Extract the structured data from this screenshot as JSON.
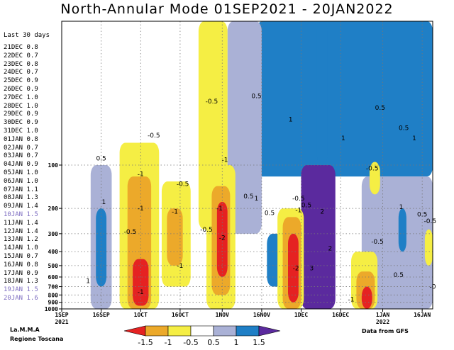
{
  "header": {
    "title": "North-Annular Mode 01SEP2021 - 20JAN2022"
  },
  "side": {
    "title": "Last 30 days",
    "entries": [
      {
        "date": "21DEC",
        "value": "0.8"
      },
      {
        "date": "22DEC",
        "value": "0.7"
      },
      {
        "date": "23DEC",
        "value": "0.8"
      },
      {
        "date": "24DEC",
        "value": "0.7"
      },
      {
        "date": "25DEC",
        "value": "0.9"
      },
      {
        "date": "26DEC",
        "value": "0.9"
      },
      {
        "date": "27DEC",
        "value": "1.0"
      },
      {
        "date": "28DEC",
        "value": "1.0"
      },
      {
        "date": "29DEC",
        "value": "0.9"
      },
      {
        "date": "30DEC",
        "value": "0.9"
      },
      {
        "date": "31DEC",
        "value": "1.0"
      },
      {
        "date": "01JAN",
        "value": "0.8"
      },
      {
        "date": "02JAN",
        "value": "0.7"
      },
      {
        "date": "03JAN",
        "value": "0.7"
      },
      {
        "date": "04JAN",
        "value": "0.9"
      },
      {
        "date": "05JAN",
        "value": "1.0"
      },
      {
        "date": "06JAN",
        "value": "1.0"
      },
      {
        "date": "07JAN",
        "value": "1.1"
      },
      {
        "date": "08JAN",
        "value": "1.3"
      },
      {
        "date": "09JAN",
        "value": "1.4"
      },
      {
        "date": "10JAN",
        "value": "1.5",
        "highlight": true
      },
      {
        "date": "11JAN",
        "value": "1.4"
      },
      {
        "date": "12JAN",
        "value": "1.4"
      },
      {
        "date": "13JAN",
        "value": "1.2"
      },
      {
        "date": "14JAN",
        "value": "1.0"
      },
      {
        "date": "15JAN",
        "value": "0.7"
      },
      {
        "date": "16JAN",
        "value": "0.8"
      },
      {
        "date": "17JAN",
        "value": "0.9"
      },
      {
        "date": "18JAN",
        "value": "1.3"
      },
      {
        "date": "19JAN",
        "value": "1.5",
        "highlight": true
      },
      {
        "date": "20JAN",
        "value": "1.6",
        "highlight": true
      }
    ]
  },
  "footer": {
    "org_line1": "La.M.M.A",
    "org_line2": "Regione Toscana",
    "source": "Data from GFS"
  },
  "colors": {
    "purple": "#5b2a9e",
    "blue": "#1f7fc6",
    "lavender": "#aab1d6",
    "white": "#ffffff",
    "yellow": "#f5ee44",
    "orange": "#eca92a",
    "red": "#e52222"
  },
  "chart_data": {
    "type": "heatmap",
    "title": "North-Annular Mode 01SEP2021 - 20JAN2022",
    "x_ticks": [
      {
        "date": "2021-09-01",
        "label": "1SEP",
        "sublabel": "2021"
      },
      {
        "date": "2021-09-16",
        "label": "16SEP"
      },
      {
        "date": "2021-10-01",
        "label": "1OCT"
      },
      {
        "date": "2021-10-16",
        "label": "16OCT"
      },
      {
        "date": "2021-11-01",
        "label": "1NOV"
      },
      {
        "date": "2021-11-16",
        "label": "16NOV"
      },
      {
        "date": "2021-12-01",
        "label": "1DEC"
      },
      {
        "date": "2021-12-16",
        "label": "16DEC"
      },
      {
        "date": "2022-01-01",
        "label": "1JAN",
        "sublabel": "2022"
      },
      {
        "date": "2022-01-16",
        "label": "16JAN"
      }
    ],
    "xlim": [
      "2021-09-01",
      "2022-01-20"
    ],
    "ylabel": "",
    "y_scale": "log",
    "y_inverted": true,
    "ylim": [
      1000,
      10
    ],
    "y_ticks": [
      1000,
      900,
      800,
      700,
      600,
      500,
      400,
      300,
      200,
      100
    ],
    "legend": {
      "placement": "bottom",
      "levels": [
        "-1.5",
        "-1",
        "-0.5",
        "0.5",
        "1",
        "1.5"
      ],
      "bins": [
        {
          "range": [
            -99,
            -1.5
          ],
          "color": "#e52222"
        },
        {
          "range": [
            -1.5,
            -1
          ],
          "color": "#eca92a"
        },
        {
          "range": [
            -1,
            -0.5
          ],
          "color": "#f5ee44"
        },
        {
          "range": [
            -0.5,
            0.5
          ],
          "color": "#ffffff"
        },
        {
          "range": [
            0.5,
            1
          ],
          "color": "#aab1d6"
        },
        {
          "range": [
            1,
            1.5
          ],
          "color": "#1f7fc6"
        },
        {
          "range": [
            1.5,
            99
          ],
          "color": "#5b2a9e"
        }
      ]
    },
    "regions": [
      {
        "value": 1.0,
        "date_range": [
          "2021-11-14",
          "2022-01-20"
        ],
        "p_range": [
          10,
          120
        ]
      },
      {
        "value": 0.7,
        "date_range": [
          "2021-11-03",
          "2021-11-16"
        ],
        "p_range": [
          10,
          300
        ]
      },
      {
        "value": 0.7,
        "date_range": [
          "2021-12-24",
          "2022-01-20"
        ],
        "p_range": [
          120,
          1000
        ]
      },
      {
        "value": 1.7,
        "date_range": [
          "2021-12-01",
          "2021-12-14"
        ],
        "p_range": [
          100,
          1000
        ]
      },
      {
        "value": 1.2,
        "date_range": [
          "2021-12-07",
          "2021-12-11"
        ],
        "p_range": [
          10,
          100
        ]
      },
      {
        "value": 1.2,
        "date_range": [
          "2021-11-18",
          "2021-11-24"
        ],
        "p_range": [
          300,
          700
        ]
      },
      {
        "value": 1.2,
        "date_range": [
          "2022-01-07",
          "2022-01-10"
        ],
        "p_range": [
          200,
          400
        ]
      },
      {
        "value": 0.7,
        "date_range": [
          "2021-09-12",
          "2021-09-20"
        ],
        "p_range": [
          100,
          1000
        ]
      },
      {
        "value": 1.2,
        "date_range": [
          "2021-09-14",
          "2021-09-18"
        ],
        "p_range": [
          200,
          700
        ]
      },
      {
        "value": -0.7,
        "date_range": [
          "2021-10-23",
          "2021-11-03"
        ],
        "p_range": [
          10,
          280
        ]
      },
      {
        "value": -0.7,
        "date_range": [
          "2021-09-23",
          "2021-10-08"
        ],
        "p_range": [
          70,
          1000
        ]
      },
      {
        "value": -1.2,
        "date_range": [
          "2021-09-26",
          "2021-10-05"
        ],
        "p_range": [
          120,
          1000
        ]
      },
      {
        "value": -1.8,
        "date_range": [
          "2021-09-28",
          "2021-10-04"
        ],
        "p_range": [
          450,
          950
        ]
      },
      {
        "value": -0.7,
        "date_range": [
          "2021-10-09",
          "2021-10-20"
        ],
        "p_range": [
          130,
          700
        ]
      },
      {
        "value": -1.2,
        "date_range": [
          "2021-10-11",
          "2021-10-17"
        ],
        "p_range": [
          200,
          500
        ]
      },
      {
        "value": -0.7,
        "date_range": [
          "2021-10-26",
          "2021-11-06"
        ],
        "p_range": [
          100,
          1000
        ]
      },
      {
        "value": -1.2,
        "date_range": [
          "2021-10-28",
          "2021-11-04"
        ],
        "p_range": [
          140,
          800
        ]
      },
      {
        "value": -1.8,
        "date_range": [
          "2021-10-30",
          "2021-11-03"
        ],
        "p_range": [
          180,
          600
        ]
      },
      {
        "value": -0.7,
        "date_range": [
          "2021-11-22",
          "2021-12-02"
        ],
        "p_range": [
          200,
          1000
        ]
      },
      {
        "value": -1.2,
        "date_range": [
          "2021-11-24",
          "2021-12-01"
        ],
        "p_range": [
          230,
          1000
        ]
      },
      {
        "value": -1.8,
        "date_range": [
          "2021-11-26",
          "2021-11-30"
        ],
        "p_range": [
          300,
          900
        ]
      },
      {
        "value": -0.7,
        "date_range": [
          "2021-12-20",
          "2021-12-30"
        ],
        "p_range": [
          400,
          1000
        ]
      },
      {
        "value": -1.2,
        "date_range": [
          "2021-12-22",
          "2021-12-29"
        ],
        "p_range": [
          550,
          1000
        ]
      },
      {
        "value": -1.8,
        "date_range": [
          "2021-12-24",
          "2021-12-28"
        ],
        "p_range": [
          700,
          1000
        ]
      },
      {
        "value": -0.7,
        "date_range": [
          "2021-12-27",
          "2021-12-31"
        ],
        "p_range": [
          95,
          160
        ]
      },
      {
        "value": -0.7,
        "date_range": [
          "2022-01-17",
          "2022-01-20"
        ],
        "p_range": [
          280,
          500
        ]
      }
    ],
    "annotations": [
      {
        "text": "-0.5",
        "date": "2021-10-28",
        "p": 36
      },
      {
        "text": "-0.5",
        "date": "2021-10-06",
        "p": 62
      },
      {
        "text": "0.5",
        "date": "2021-09-16",
        "p": 90
      },
      {
        "text": "-1",
        "date": "2021-10-01",
        "p": 115
      },
      {
        "text": "-1",
        "date": "2021-11-02",
        "p": 92
      },
      {
        "text": "-0.5",
        "date": "2021-10-17",
        "p": 135
      },
      {
        "text": "0.5",
        "date": "2021-11-11",
        "p": 165
      },
      {
        "text": "-0.5",
        "date": "2021-12-28",
        "p": 105
      },
      {
        "text": "-1",
        "date": "2021-10-01",
        "p": 200
      },
      {
        "text": "-1",
        "date": "2021-10-14",
        "p": 210
      },
      {
        "text": "-1",
        "date": "2021-10-31",
        "p": 200
      },
      {
        "text": "1",
        "date": "2021-09-17",
        "p": 180
      },
      {
        "text": "-0.5",
        "date": "2021-09-27",
        "p": 290
      },
      {
        "text": "-0.5",
        "date": "2021-10-26",
        "p": 280
      },
      {
        "text": "-2",
        "date": "2021-11-01",
        "p": 320
      },
      {
        "text": "1",
        "date": "2021-11-14",
        "p": 170
      },
      {
        "text": "0.5",
        "date": "2021-11-19",
        "p": 215
      },
      {
        "text": "-0.5",
        "date": "2021-11-30",
        "p": 170
      },
      {
        "text": "-1",
        "date": "2021-11-30",
        "p": 205
      },
      {
        "text": "0.5",
        "date": "2021-12-03",
        "p": 190
      },
      {
        "text": "2",
        "date": "2021-12-09",
        "p": 210
      },
      {
        "text": "-1",
        "date": "2021-10-16",
        "p": 500
      },
      {
        "text": "-1",
        "date": "2021-10-01",
        "p": 760
      },
      {
        "text": "1",
        "date": "2021-09-11",
        "p": 640
      },
      {
        "text": "-2",
        "date": "2021-11-29",
        "p": 520
      },
      {
        "text": "3",
        "date": "2021-12-05",
        "p": 520
      },
      {
        "text": "2",
        "date": "2021-12-12",
        "p": 380
      },
      {
        "text": "-1",
        "date": "2021-12-20",
        "p": 860
      },
      {
        "text": "-0.5",
        "date": "2021-12-30",
        "p": 340
      },
      {
        "text": "1",
        "date": "2022-01-08",
        "p": 195
      },
      {
        "text": "0.5",
        "date": "2022-01-07",
        "p": 580
      },
      {
        "text": "0.5",
        "date": "2022-01-16",
        "p": 220
      },
      {
        "text": "-0.5",
        "date": "2022-01-19",
        "p": 245
      },
      {
        "text": "0.5",
        "date": "2021-12-31",
        "p": 40
      },
      {
        "text": "0.5",
        "date": "2022-01-09",
        "p": 55
      },
      {
        "text": "1",
        "date": "2021-11-27",
        "p": 48
      },
      {
        "text": "1",
        "date": "2021-12-17",
        "p": 65
      },
      {
        "text": "1",
        "date": "2022-01-13",
        "p": 65
      },
      {
        "text": "0.5",
        "date": "2021-11-14",
        "p": 33
      },
      {
        "text": "-0",
        "date": "2022-01-20",
        "p": 700
      }
    ]
  }
}
